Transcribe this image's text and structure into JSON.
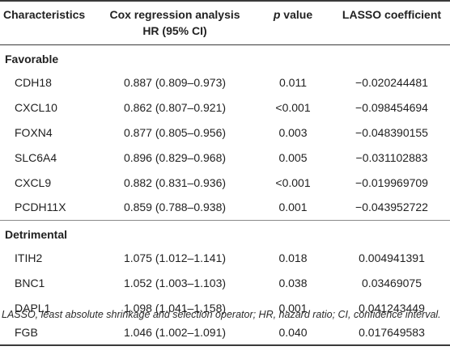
{
  "table": {
    "headers": {
      "characteristics": "Characteristics",
      "cox_line1": "Cox regression analysis",
      "cox_line2": "HR (95% CI)",
      "p_symbol": "p",
      "p_rest": " value",
      "lasso": "LASSO coefficient"
    },
    "groups": [
      {
        "label": "Favorable",
        "rows": [
          {
            "gene": "CDH18",
            "hr": "0.887 (0.809–0.973)",
            "p": "0.011",
            "lasso": "−0.020244481"
          },
          {
            "gene": "CXCL10",
            "hr": "0.862 (0.807–0.921)",
            "p": "<0.001",
            "lasso": "−0.098454694"
          },
          {
            "gene": "FOXN4",
            "hr": "0.877 (0.805–0.956)",
            "p": "0.003",
            "lasso": "−0.048390155"
          },
          {
            "gene": "SLC6A4",
            "hr": "0.896 (0.829–0.968)",
            "p": "0.005",
            "lasso": "−0.031102883"
          },
          {
            "gene": "CXCL9",
            "hr": "0.882 (0.831–0.936)",
            "p": "<0.001",
            "lasso": "−0.019969709"
          },
          {
            "gene": "PCDH11X",
            "hr": "0.859 (0.788–0.938)",
            "p": "0.001",
            "lasso": "−0.043952722"
          }
        ]
      },
      {
        "label": "Detrimental",
        "rows": [
          {
            "gene": "ITIH2",
            "hr": "1.075 (1.012–1.141)",
            "p": "0.018",
            "lasso": "0.004941391"
          },
          {
            "gene": "BNC1",
            "hr": "1.052 (1.003–1.103)",
            "p": "0.038",
            "lasso": "0.03469075"
          },
          {
            "gene": "DAPL1",
            "hr": "1.098 (1.041–1.158)",
            "p": "0.001",
            "lasso": "0.041243449"
          },
          {
            "gene": "FGB",
            "hr": "1.046 (1.002–1.091)",
            "p": "0.040",
            "lasso": "0.017649583"
          }
        ]
      }
    ]
  },
  "footnote": "LASSO, least absolute shrinkage and selection operator; HR, hazard ratio; CI, confidence interval."
}
